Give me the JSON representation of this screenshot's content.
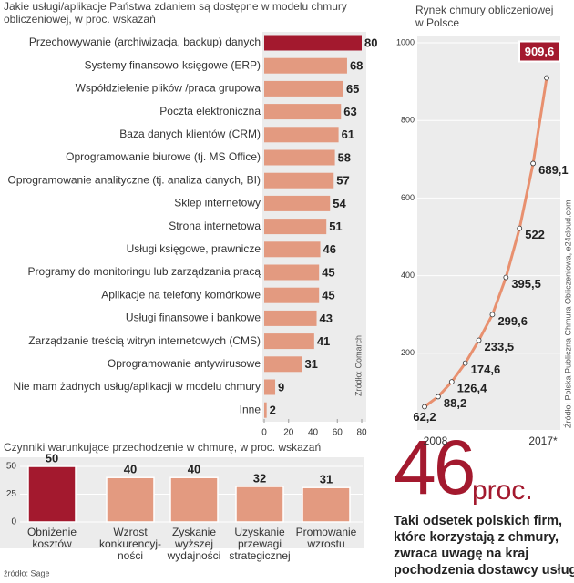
{
  "chart_data": [
    {
      "type": "bar",
      "orientation": "horizontal",
      "title": [
        "Jakie usługi/aplikacje Państwa zdaniem są dostępne w modelu chmury",
        "obliczeniowej, w proc. wskazań"
      ],
      "categories": [
        "Przechowywanie (archiwizacja, backup) danych",
        "Systemy finansowo-księgowe (ERP)",
        "Współdzielenie plików /praca grupowa",
        "Poczta elektroniczna",
        "Baza danych klientów (CRM)",
        "Oprogramowanie biurowe (tj. MS Office)",
        "Oprogramowanie analityczne (tj. analiza danych, BI)",
        "Sklep internetowy",
        "Strona internetowa",
        "Usługi księgowe, prawnicze",
        "Programy do monitoringu lub zarządzania pracą",
        "Aplikacje na telefony komórkowe",
        "Usługi finansowe i bankowe",
        "Zarządzanie treścią witryn internetowych (CMS)",
        "Oprogramowanie antywirusowe",
        "Nie mam żadnych usług/aplikacji w modelu chmury",
        "Inne"
      ],
      "values": [
        80,
        68,
        65,
        63,
        61,
        58,
        57,
        54,
        51,
        46,
        45,
        45,
        43,
        41,
        31,
        9,
        2
      ],
      "colors": [
        "#a3192e",
        "#e39a80",
        "#e39a80",
        "#e39a80",
        "#e39a80",
        "#e39a80",
        "#e39a80",
        "#e39a80",
        "#e39a80",
        "#e39a80",
        "#e39a80",
        "#e39a80",
        "#e39a80",
        "#e39a80",
        "#e39a80",
        "#e39a80",
        "#e39a80"
      ],
      "xlim": [
        0,
        80
      ],
      "xticks": [
        0,
        20,
        40,
        60,
        80
      ],
      "source": "Źródło: Comarch"
    },
    {
      "type": "line",
      "title": [
        "Rynek chmury obliczeniowej",
        "w Polsce"
      ],
      "categories": [
        "2008",
        null,
        null,
        null,
        null,
        null,
        null,
        null,
        null,
        "2017*"
      ],
      "values": [
        62.2,
        88.2,
        126.4,
        174.6,
        233.5,
        299.6,
        395.5,
        522,
        689.1,
        909.6
      ],
      "value_labels": [
        "62,2",
        "88,2",
        "126,4",
        "174,6",
        "233,5",
        "299,6",
        "395,5",
        "522",
        "689,1",
        "909,6"
      ],
      "color": "#e8906f",
      "ylim": [
        0,
        1000
      ],
      "yticks": [
        200,
        400,
        600,
        800,
        1000
      ],
      "source": "Źródło: Polska Publiczna Chmura Obliczeniowa, e24cloud.com"
    },
    {
      "type": "bar",
      "orientation": "vertical",
      "title": [
        "Czynniki warunkujące przechodzenie w chmurę, w proc. wskazań"
      ],
      "categories": [
        [
          "Obniżenie",
          "kosztów"
        ],
        [
          "Wzrost",
          "konkurencyj-",
          "ności"
        ],
        [
          "Zyskanie",
          "wyższej",
          "wydajności"
        ],
        [
          "Uzyskanie",
          "przewagi",
          "strategicznej"
        ],
        [
          "Promowanie",
          "wzrostu"
        ]
      ],
      "values": [
        50,
        40,
        40,
        32,
        31
      ],
      "colors": [
        "#a3192e",
        "#e39a80",
        "#e39a80",
        "#e39a80",
        "#e39a80"
      ],
      "ylim": [
        0,
        50
      ],
      "yticks": [
        0,
        25,
        50
      ],
      "source": "źródło: Sage"
    }
  ],
  "highlight": {
    "value": 46,
    "unit": "proc.",
    "text": [
      "Taki odsetek polskich firm,",
      "które korzystają z chmury,",
      "zwraca uwagę na kraj",
      "pochodzenia dostawcy usług"
    ]
  }
}
